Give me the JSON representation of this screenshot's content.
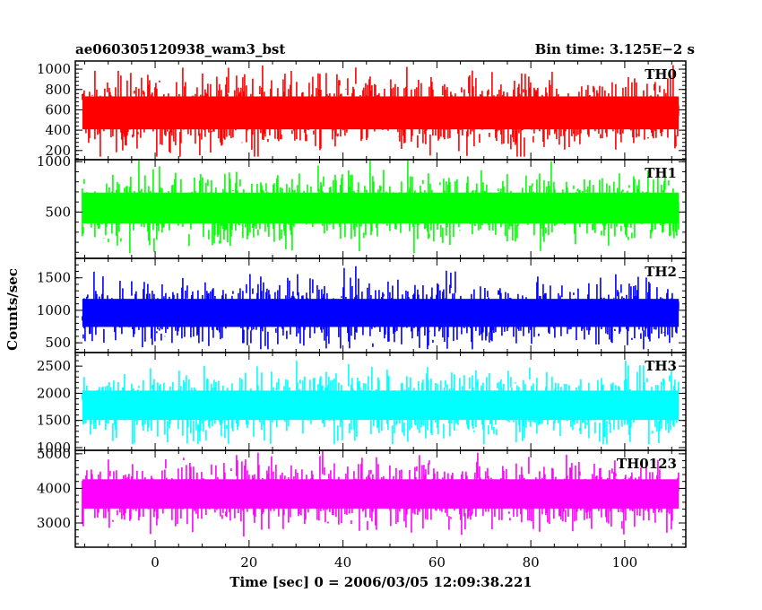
{
  "header": {
    "title": "ae060305120938_wam3_bst",
    "bin_time": "Bin time: 3.125E−2 s"
  },
  "xlabel": "Time [sec] 0 = 2006/03/05 12:09:38.221",
  "ylabel": "Counts/sec",
  "chart_data": {
    "type": "line",
    "title": "ae060305120938_wam3_bst",
    "xlabel": "Time [sec] 0 = 2006/03/05 12:09:38.221",
    "ylabel": "Counts/sec",
    "xlim": [
      -17,
      113
    ],
    "x_ticks": [
      0,
      20,
      40,
      60,
      80,
      100
    ],
    "x_range": [
      -15.5,
      111.5
    ],
    "bin_time": 0.03125,
    "panels": [
      {
        "name": "TH0",
        "color": "#ff0000",
        "ylim": [
          110,
          1080
        ],
        "y_ticks": [
          200,
          400,
          600,
          800,
          1000
        ],
        "mean": 570,
        "noise_sd": 180,
        "ymin": 140,
        "ymax": 1080
      },
      {
        "name": "TH1",
        "color": "#00ff00",
        "ylim": [
          40,
          1020
        ],
        "y_ticks": [
          500,
          1000
        ],
        "mean": 540,
        "noise_sd": 170,
        "ymin": 90,
        "ymax": 1010
      },
      {
        "name": "TH2",
        "color": "#0000ff",
        "ylim": [
          350,
          1800
        ],
        "y_ticks": [
          500,
          1000,
          1500
        ],
        "mean": 960,
        "noise_sd": 240,
        "ymin": 400,
        "ymax": 1800
      },
      {
        "name": "TH3",
        "color": "#00ffff",
        "ylim": [
          950,
          2750
        ],
        "y_ticks": [
          1000,
          1500,
          2000,
          2500
        ],
        "mean": 1780,
        "noise_sd": 300,
        "ymin": 1060,
        "ymax": 2750
      },
      {
        "name": "TH0123",
        "color": "#ff00ff",
        "ylim": [
          2300,
          5100
        ],
        "y_ticks": [
          3000,
          4000,
          5000
        ],
        "mean": 3840,
        "noise_sd": 470,
        "ymin": 2400,
        "ymax": 5100
      }
    ]
  }
}
